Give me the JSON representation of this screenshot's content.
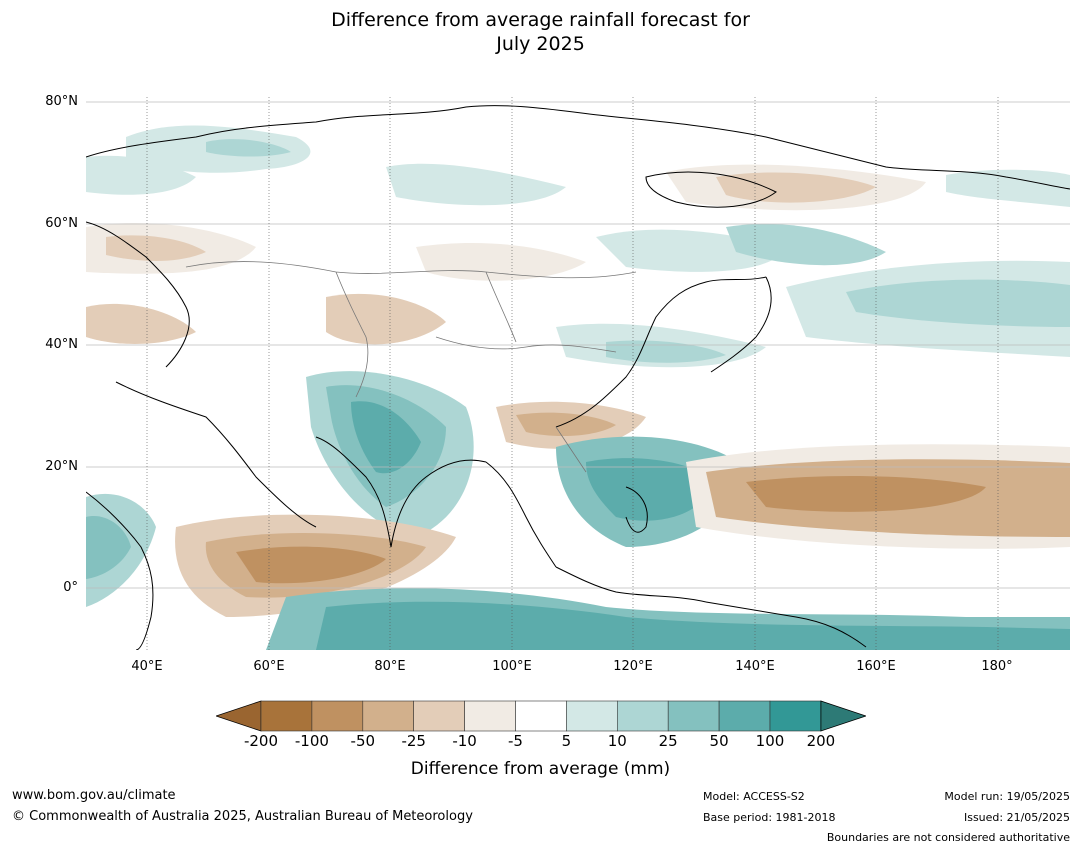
{
  "title_line1": "Difference from average rainfall forecast for",
  "title_line2": "July 2025",
  "lat_labels": [
    "80°N",
    "60°N",
    "40°N",
    "20°N",
    "0°"
  ],
  "lon_labels": [
    "40°E",
    "60°E",
    "80°E",
    "100°E",
    "120°E",
    "140°E",
    "160°E",
    "180°"
  ],
  "colorbar": {
    "ticks": [
      "-200",
      "-100",
      "-50",
      "-25",
      "-10",
      "-5",
      "5",
      "10",
      "25",
      "50",
      "100",
      "200"
    ],
    "colors": [
      "#a8733a",
      "#bf9161",
      "#d2b08c",
      "#e3cdb8",
      "#f1ebe4",
      "#ffffff",
      "#d3e8e6",
      "#add6d4",
      "#84c1bf",
      "#5cacab",
      "#329896"
    ],
    "under_color": "#9a6530",
    "over_color": "#2d7a76",
    "label": "Difference from average (mm)"
  },
  "footer": {
    "website": "www.bom.gov.au/climate",
    "copyright": "© Commonwealth of Australia 2025, Australian Bureau of Meteorology",
    "model": "Model: ACCESS-S2",
    "base_period": "Base period: 1981-2018",
    "model_run": "Model run: 19/05/2025",
    "issued": "Issued: 21/05/2025",
    "disclaimer": "Boundaries are not considered authoritative"
  }
}
